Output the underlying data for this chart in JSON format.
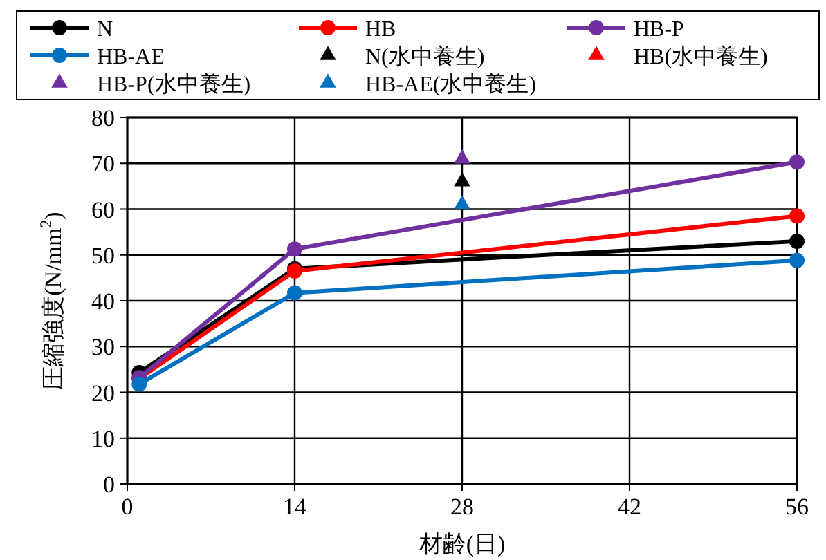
{
  "chart_data": {
    "type": "line",
    "xlabel": "材齢(日)",
    "ylabel": "圧縮強度(N/mm$^{2}$)",
    "x": [
      28
    ],
    "xlim": [
      0,
      56
    ],
    "xticks": [
      0,
      14,
      28,
      42,
      56
    ],
    "ylim": [
      0,
      80
    ],
    "yticks": [
      0,
      10,
      20,
      30,
      40,
      50,
      60,
      70,
      80
    ],
    "grid": true,
    "legend": "top",
    "marker": "circle",
    "line_style": "solid",
    "series": [
      {
        "name": "N",
        "color": "#000000",
        "x": [
          1,
          14,
          56
        ],
        "values": [
          24.3,
          47,
          53
        ]
      },
      {
        "name": "HB",
        "color": "#ff0000",
        "x": [
          1,
          14,
          56
        ],
        "values": [
          23,
          46.5,
          58.5
        ]
      },
      {
        "name": "HB-P",
        "color": "#7030a0",
        "x": [
          1,
          14,
          56
        ],
        "values": [
          23.2,
          51.3,
          70.3
        ]
      },
      {
        "name": "HB-AE",
        "color": "#0070c0",
        "x": [
          1,
          14,
          56
        ],
        "values": [
          21.8,
          41.7,
          48.8
        ]
      },
      {
        "name": "N(水中養生)",
        "type": "scatter",
        "marker": "triangle",
        "color": "#000000",
        "values": [
          66
        ]
      },
      {
        "name": "HB(水中養生)",
        "type": "scatter",
        "marker": "triangle",
        "color": "#ff0000",
        "values": [
          null
        ]
      },
      {
        "name": "HB-P(水中養生)",
        "type": "scatter",
        "marker": "triangle",
        "color": "#7030a0",
        "values": [
          71
        ]
      },
      {
        "name": "HB-AE(水中養生)",
        "type": "scatter",
        "marker": "triangle",
        "color": "#0070c0",
        "values": [
          61
        ]
      }
    ]
  }
}
